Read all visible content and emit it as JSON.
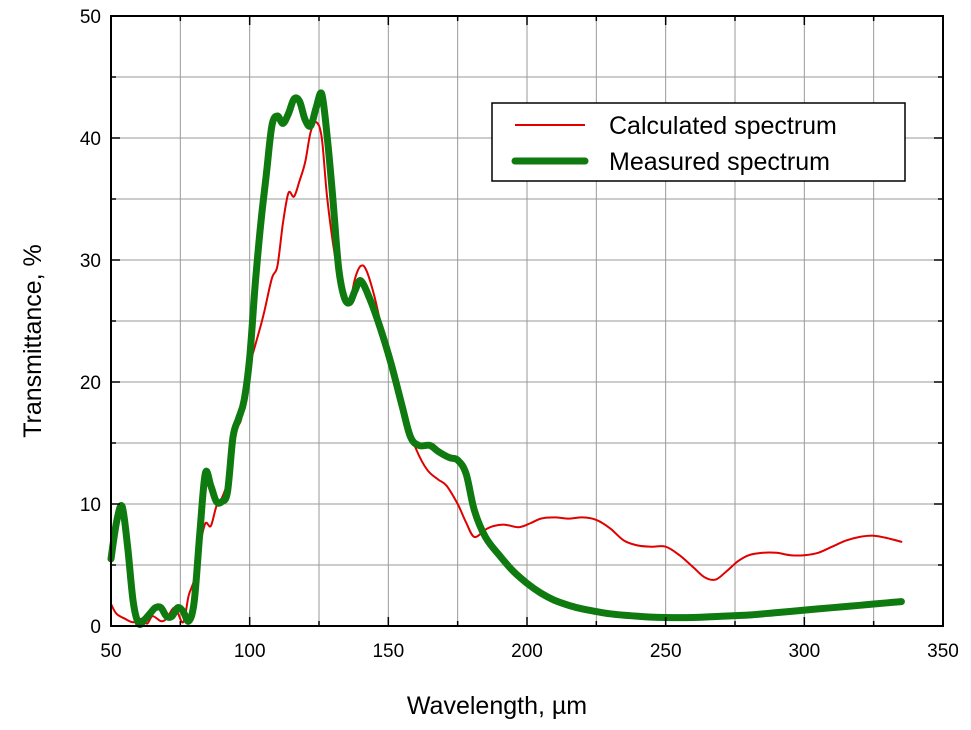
{
  "chart_data": {
    "type": "line",
    "title": "",
    "xlabel": "Wavelength, µm",
    "ylabel": "Transmittance, %",
    "xlim": [
      50,
      350
    ],
    "ylim": [
      0,
      50
    ],
    "x_ticks": [
      50,
      100,
      150,
      200,
      250,
      300,
      350
    ],
    "y_ticks": [
      0,
      10,
      20,
      30,
      40,
      50
    ],
    "x_tick_labels": [
      "50",
      "100",
      "150",
      "200",
      "250",
      "300",
      "350"
    ],
    "y_tick_labels": [
      "0",
      "10",
      "20",
      "30",
      "40",
      "50"
    ],
    "x_minor_step": 25,
    "y_minor_step": 5,
    "grid": true,
    "legend_position": "top-right",
    "series": [
      {
        "name": "Calculated spectrum",
        "color": "#e00000",
        "points": [
          [
            50,
            1.8
          ],
          [
            52,
            1.0
          ],
          [
            55,
            0.6
          ],
          [
            58,
            0.3
          ],
          [
            61,
            0.6
          ],
          [
            63,
            0.2
          ],
          [
            65,
            0.8
          ],
          [
            68,
            0.4
          ],
          [
            70,
            0.6
          ],
          [
            73,
            1.5
          ],
          [
            76,
            0.3
          ],
          [
            78,
            2.5
          ],
          [
            80,
            3.8
          ],
          [
            82,
            6.5
          ],
          [
            84,
            8.4
          ],
          [
            86,
            8.2
          ],
          [
            88,
            9.8
          ],
          [
            90,
            10.5
          ],
          [
            93,
            12.5
          ],
          [
            95,
            16.0
          ],
          [
            97,
            17.0
          ],
          [
            99,
            20.5
          ],
          [
            102,
            23.0
          ],
          [
            105,
            25.5
          ],
          [
            108,
            28.5
          ],
          [
            110,
            29.5
          ],
          [
            112,
            33.0
          ],
          [
            114,
            35.5
          ],
          [
            116,
            35.2
          ],
          [
            118,
            36.5
          ],
          [
            120,
            38.0
          ],
          [
            122,
            40.5
          ],
          [
            124,
            41.3
          ],
          [
            126,
            40.0
          ],
          [
            128,
            35.0
          ],
          [
            131,
            30.0
          ],
          [
            134,
            27.0
          ],
          [
            136,
            26.5
          ],
          [
            138,
            28.5
          ],
          [
            140,
            29.5
          ],
          [
            142,
            29.2
          ],
          [
            145,
            27.0
          ],
          [
            148,
            24.0
          ],
          [
            150,
            22.5
          ],
          [
            153,
            20.0
          ],
          [
            157,
            16.5
          ],
          [
            160,
            14.5
          ],
          [
            164,
            12.8
          ],
          [
            168,
            12.0
          ],
          [
            171,
            11.5
          ],
          [
            175,
            10.0
          ],
          [
            178,
            8.5
          ],
          [
            181,
            7.3
          ],
          [
            185,
            7.9
          ],
          [
            188,
            8.2
          ],
          [
            192,
            8.3
          ],
          [
            197,
            8.1
          ],
          [
            201,
            8.4
          ],
          [
            205,
            8.8
          ],
          [
            210,
            8.9
          ],
          [
            215,
            8.8
          ],
          [
            220,
            8.9
          ],
          [
            225,
            8.7
          ],
          [
            230,
            8.0
          ],
          [
            235,
            7.0
          ],
          [
            240,
            6.6
          ],
          [
            245,
            6.5
          ],
          [
            250,
            6.5
          ],
          [
            255,
            5.8
          ],
          [
            260,
            4.8
          ],
          [
            264,
            4.0
          ],
          [
            268,
            3.8
          ],
          [
            272,
            4.5
          ],
          [
            276,
            5.3
          ],
          [
            280,
            5.8
          ],
          [
            285,
            6.0
          ],
          [
            290,
            6.0
          ],
          [
            295,
            5.8
          ],
          [
            300,
            5.8
          ],
          [
            305,
            6.0
          ],
          [
            310,
            6.5
          ],
          [
            315,
            7.0
          ],
          [
            320,
            7.3
          ],
          [
            325,
            7.4
          ],
          [
            330,
            7.2
          ],
          [
            335,
            6.9
          ]
        ]
      },
      {
        "name": "Measured spectrum",
        "color": "#0f7a0f",
        "points": [
          [
            50,
            5.5
          ],
          [
            52,
            8.5
          ],
          [
            54,
            9.8
          ],
          [
            56,
            6.5
          ],
          [
            58,
            2.0
          ],
          [
            60,
            0.2
          ],
          [
            62,
            0.5
          ],
          [
            64,
            1.0
          ],
          [
            66,
            1.5
          ],
          [
            68,
            1.5
          ],
          [
            70,
            0.8
          ],
          [
            72,
            0.8
          ],
          [
            74,
            1.5
          ],
          [
            76,
            1.2
          ],
          [
            78,
            0.4
          ],
          [
            80,
            2.0
          ],
          [
            82,
            7.5
          ],
          [
            84,
            12.5
          ],
          [
            86,
            11.5
          ],
          [
            88,
            10.2
          ],
          [
            90,
            10.2
          ],
          [
            92,
            11.0
          ],
          [
            94,
            15.5
          ],
          [
            96,
            17.0
          ],
          [
            98,
            18.5
          ],
          [
            100,
            22.0
          ],
          [
            102,
            28.0
          ],
          [
            104,
            33.0
          ],
          [
            106,
            37.0
          ],
          [
            108,
            41.0
          ],
          [
            110,
            41.8
          ],
          [
            112,
            41.2
          ],
          [
            114,
            42.0
          ],
          [
            116,
            43.2
          ],
          [
            118,
            43.0
          ],
          [
            120,
            41.5
          ],
          [
            122,
            41.0
          ],
          [
            124,
            42.5
          ],
          [
            126,
            43.6
          ],
          [
            128,
            40.0
          ],
          [
            130,
            35.0
          ],
          [
            132,
            29.5
          ],
          [
            134,
            27.0
          ],
          [
            136,
            26.5
          ],
          [
            138,
            27.5
          ],
          [
            140,
            28.3
          ],
          [
            143,
            27.0
          ],
          [
            147,
            24.5
          ],
          [
            151,
            21.5
          ],
          [
            155,
            18.0
          ],
          [
            158,
            15.5
          ],
          [
            161,
            14.8
          ],
          [
            165,
            14.8
          ],
          [
            168,
            14.3
          ],
          [
            172,
            13.8
          ],
          [
            175,
            13.6
          ],
          [
            178,
            12.5
          ],
          [
            181,
            9.5
          ],
          [
            185,
            7.3
          ],
          [
            190,
            5.8
          ],
          [
            195,
            4.5
          ],
          [
            200,
            3.5
          ],
          [
            205,
            2.7
          ],
          [
            210,
            2.1
          ],
          [
            215,
            1.7
          ],
          [
            220,
            1.4
          ],
          [
            230,
            1.0
          ],
          [
            240,
            0.8
          ],
          [
            250,
            0.7
          ],
          [
            260,
            0.7
          ],
          [
            270,
            0.8
          ],
          [
            280,
            0.9
          ],
          [
            290,
            1.1
          ],
          [
            300,
            1.3
          ],
          [
            310,
            1.5
          ],
          [
            320,
            1.7
          ],
          [
            330,
            1.9
          ],
          [
            335,
            2.0
          ]
        ]
      }
    ]
  }
}
